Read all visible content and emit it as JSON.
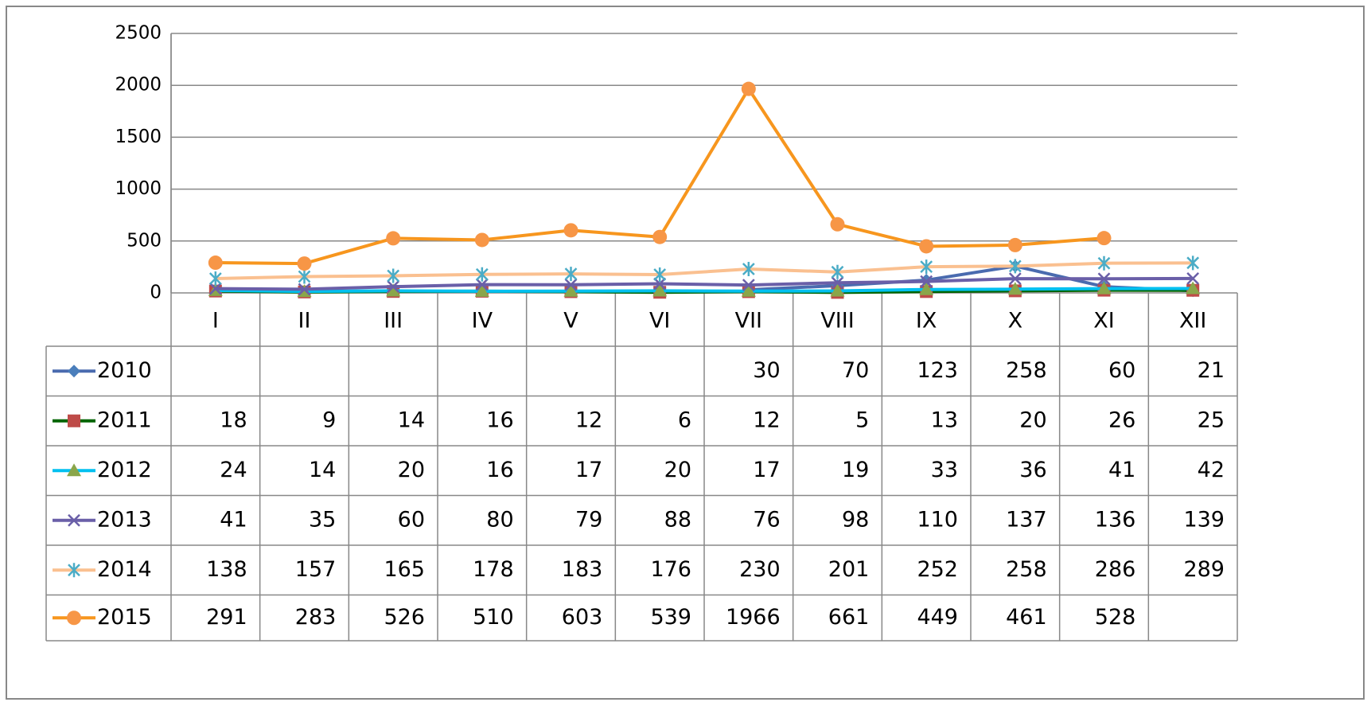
{
  "chart_data": {
    "type": "line",
    "categories": [
      "I",
      "II",
      "III",
      "IV",
      "V",
      "VI",
      "VII",
      "VIII",
      "IX",
      "X",
      "XI",
      "XII"
    ],
    "series": [
      {
        "name": "2010",
        "color": "#4a6baf",
        "marker": "diamond",
        "marker_color": "#4a7ebb",
        "values": [
          null,
          null,
          null,
          null,
          null,
          null,
          30,
          70,
          123,
          258,
          60,
          21
        ]
      },
      {
        "name": "2011",
        "color": "#006400",
        "marker": "square",
        "marker_color": "#be4b48",
        "values": [
          18,
          9,
          14,
          16,
          12,
          6,
          12,
          5,
          13,
          20,
          26,
          25
        ]
      },
      {
        "name": "2012",
        "color": "#00c0f0",
        "marker": "triangle",
        "marker_color": "#8aa64a",
        "values": [
          24,
          14,
          20,
          16,
          17,
          20,
          17,
          19,
          33,
          36,
          41,
          42
        ]
      },
      {
        "name": "2013",
        "color": "#6a5fa8",
        "marker": "x",
        "marker_color": "#6a5fa8",
        "values": [
          41,
          35,
          60,
          80,
          79,
          88,
          76,
          98,
          110,
          137,
          136,
          139
        ]
      },
      {
        "name": "2014",
        "color": "#fac090",
        "marker": "star",
        "marker_color": "#4bacc6",
        "values": [
          138,
          157,
          165,
          178,
          183,
          176,
          230,
          201,
          252,
          258,
          286,
          289
        ]
      },
      {
        "name": "2015",
        "color": "#f7961e",
        "marker": "circle",
        "marker_color": "#f79646",
        "values": [
          291,
          283,
          526,
          510,
          603,
          539,
          1966,
          661,
          449,
          461,
          528,
          null
        ]
      }
    ],
    "ylim": [
      0,
      2500
    ],
    "yticks": [
      0,
      500,
      1000,
      1500,
      2000,
      2500
    ],
    "grid": true
  }
}
